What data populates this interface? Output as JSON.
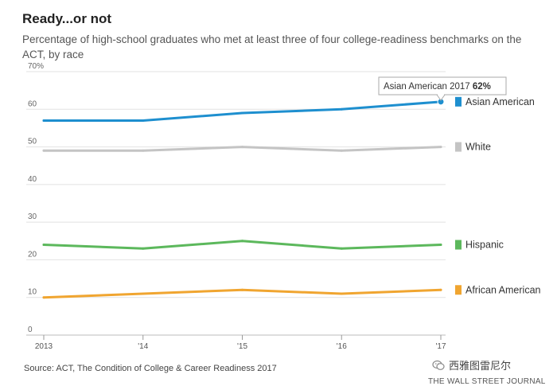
{
  "title": "Ready...or not",
  "subtitle": "Percentage of high-school graduates who met at least three of four college-readiness benchmarks on the ACT, by race",
  "source": "Source: ACT, The Condition of College & Career Readiness 2017",
  "watermark": "西雅图雷尼尔",
  "publisher": "THE WALL STREET JOURNAL",
  "tooltip": {
    "series": "Asian American",
    "year": "2017",
    "value": "62%"
  },
  "chart_data": {
    "type": "line",
    "title": "Ready...or not",
    "xlabel": "",
    "ylabel": "",
    "x": [
      2013,
      2014,
      2015,
      2016,
      2017
    ],
    "x_tick_labels": [
      "2013",
      "'14",
      "'15",
      "'16",
      "'17"
    ],
    "ylim": [
      0,
      70
    ],
    "y_ticks": [
      0,
      10,
      20,
      30,
      40,
      50,
      60,
      70
    ],
    "y_tick_labels": [
      "0",
      "10",
      "20",
      "30",
      "40",
      "50",
      "60",
      "70%"
    ],
    "grid": true,
    "legend": "right",
    "series": [
      {
        "name": "Asian American",
        "color": "#1e8fcf",
        "values": [
          57,
          57,
          59,
          60,
          62
        ]
      },
      {
        "name": "White",
        "color": "#c4c4c4",
        "values": [
          49,
          49,
          50,
          49,
          50
        ]
      },
      {
        "name": "Hispanic",
        "color": "#5cb85c",
        "values": [
          24,
          23,
          25,
          23,
          24
        ]
      },
      {
        "name": "African American",
        "color": "#f0a530",
        "values": [
          10,
          11,
          12,
          11,
          12
        ]
      }
    ]
  }
}
